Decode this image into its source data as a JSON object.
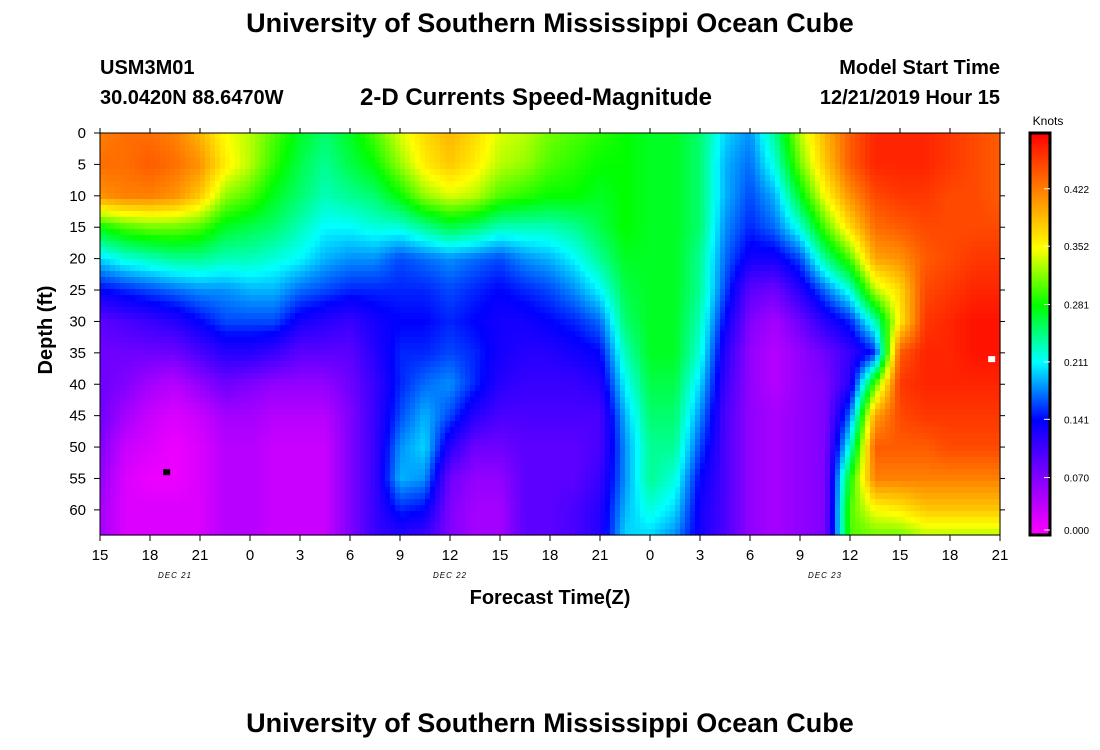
{
  "header": {
    "title": "University of Southern Mississippi Ocean Cube",
    "station_id": "USM3M01",
    "coordinates": "30.0420N 88.6470W",
    "model_start_label": "Model Start Time",
    "model_start_value": "12/21/2019 Hour 15"
  },
  "footer": {
    "title": "University of Southern Mississippi Ocean Cube"
  },
  "colorbar": {
    "unit_label": "Knots",
    "ticks": [
      "0.000",
      "0.070",
      "0.141",
      "0.211",
      "0.281",
      "0.352",
      "0.422"
    ]
  },
  "chart_data": {
    "type": "heatmap",
    "title": "2-D Currents Speed-Magnitude",
    "xlabel": "Forecast Time(Z)",
    "ylabel": "Depth (ft)",
    "units": "Knots",
    "value_range": [
      0.0,
      0.49
    ],
    "x_range_hours": [
      0,
      54
    ],
    "y_range_ft": [
      0,
      64
    ],
    "x_tick_labels": [
      "15",
      "18",
      "21",
      "0",
      "3",
      "6",
      "9",
      "12",
      "15",
      "18",
      "21",
      "0",
      "3",
      "6",
      "9",
      "12",
      "15",
      "18",
      "21"
    ],
    "y_tick_labels": [
      "0",
      "5",
      "10",
      "15",
      "20",
      "25",
      "30",
      "35",
      "40",
      "45",
      "50",
      "55",
      "60"
    ],
    "y_ticks": [
      0,
      5,
      10,
      15,
      20,
      25,
      30,
      35,
      40,
      45,
      50,
      55,
      60
    ],
    "date_labels": [
      {
        "text": "DEC 21",
        "hour": 4.5
      },
      {
        "text": "DEC 22",
        "hour": 21
      },
      {
        "text": "DEC 23",
        "hour": 43.5
      }
    ],
    "markers": [
      {
        "hour": 4,
        "depth_ft": 54,
        "color": "#000000"
      },
      {
        "hour": 53.5,
        "depth_ft": 36,
        "color": "#ffffff"
      }
    ],
    "x_hours": [
      0,
      1.5,
      3,
      4.5,
      6,
      7.5,
      9,
      10.5,
      12,
      13.5,
      15,
      16.5,
      18,
      19.5,
      21,
      22.5,
      24,
      25.5,
      27,
      28.5,
      30,
      31.5,
      33,
      34.5,
      36,
      37.5,
      39,
      40.5,
      42,
      43.5,
      45,
      46.5,
      48,
      49.5,
      51,
      52.5,
      54
    ],
    "depth_ft": [
      0,
      5,
      10,
      15,
      20,
      25,
      30,
      35,
      40,
      45,
      50,
      55,
      60,
      64
    ],
    "speed_knots": [
      [
        0.42,
        0.43,
        0.41,
        0.28,
        0.2,
        0.14,
        0.09,
        0.08,
        0.08,
        0.08,
        0.07,
        0.06,
        0.05,
        0.05
      ],
      [
        0.43,
        0.43,
        0.42,
        0.3,
        0.22,
        0.15,
        0.1,
        0.08,
        0.07,
        0.05,
        0.03,
        0.02,
        0.02,
        0.02
      ],
      [
        0.43,
        0.44,
        0.42,
        0.31,
        0.23,
        0.16,
        0.11,
        0.08,
        0.05,
        0.03,
        0.02,
        0.01,
        0.02,
        0.02
      ],
      [
        0.42,
        0.43,
        0.41,
        0.31,
        0.24,
        0.17,
        0.12,
        0.08,
        0.04,
        0.02,
        0.01,
        0.01,
        0.02,
        0.02
      ],
      [
        0.39,
        0.41,
        0.38,
        0.3,
        0.24,
        0.18,
        0.14,
        0.1,
        0.06,
        0.03,
        0.02,
        0.02,
        0.02,
        0.02
      ],
      [
        0.35,
        0.36,
        0.32,
        0.27,
        0.23,
        0.18,
        0.16,
        0.12,
        0.08,
        0.05,
        0.04,
        0.04,
        0.04,
        0.04
      ],
      [
        0.33,
        0.33,
        0.3,
        0.26,
        0.23,
        0.19,
        0.16,
        0.12,
        0.07,
        0.05,
        0.04,
        0.04,
        0.04,
        0.04
      ],
      [
        0.3,
        0.29,
        0.27,
        0.25,
        0.22,
        0.19,
        0.16,
        0.11,
        0.06,
        0.04,
        0.03,
        0.03,
        0.03,
        0.03
      ],
      [
        0.27,
        0.26,
        0.25,
        0.23,
        0.21,
        0.17,
        0.13,
        0.09,
        0.06,
        0.04,
        0.03,
        0.03,
        0.03,
        0.03
      ],
      [
        0.25,
        0.24,
        0.23,
        0.21,
        0.19,
        0.16,
        0.12,
        0.09,
        0.06,
        0.04,
        0.03,
        0.03,
        0.03,
        0.03
      ],
      [
        0.27,
        0.26,
        0.24,
        0.21,
        0.18,
        0.15,
        0.11,
        0.09,
        0.08,
        0.07,
        0.07,
        0.07,
        0.07,
        0.07
      ],
      [
        0.3,
        0.28,
        0.25,
        0.22,
        0.18,
        0.15,
        0.13,
        0.12,
        0.11,
        0.11,
        0.11,
        0.11,
        0.11,
        0.11
      ],
      [
        0.34,
        0.32,
        0.28,
        0.22,
        0.16,
        0.15,
        0.14,
        0.15,
        0.15,
        0.16,
        0.18,
        0.19,
        0.15,
        0.12
      ],
      [
        0.37,
        0.36,
        0.32,
        0.24,
        0.17,
        0.15,
        0.14,
        0.15,
        0.17,
        0.19,
        0.2,
        0.18,
        0.14,
        0.11
      ],
      [
        0.39,
        0.38,
        0.34,
        0.26,
        0.18,
        0.16,
        0.15,
        0.16,
        0.18,
        0.16,
        0.12,
        0.08,
        0.07,
        0.07
      ],
      [
        0.37,
        0.36,
        0.33,
        0.25,
        0.17,
        0.15,
        0.14,
        0.15,
        0.15,
        0.12,
        0.08,
        0.06,
        0.05,
        0.05
      ],
      [
        0.34,
        0.33,
        0.3,
        0.23,
        0.16,
        0.14,
        0.13,
        0.13,
        0.12,
        0.1,
        0.08,
        0.06,
        0.05,
        0.05
      ],
      [
        0.33,
        0.32,
        0.29,
        0.23,
        0.18,
        0.15,
        0.13,
        0.12,
        0.11,
        0.1,
        0.09,
        0.09,
        0.09,
        0.09
      ],
      [
        0.31,
        0.3,
        0.28,
        0.23,
        0.19,
        0.16,
        0.14,
        0.12,
        0.11,
        0.1,
        0.09,
        0.09,
        0.09,
        0.09
      ],
      [
        0.3,
        0.29,
        0.28,
        0.24,
        0.21,
        0.18,
        0.15,
        0.13,
        0.11,
        0.1,
        0.09,
        0.09,
        0.1,
        0.1
      ],
      [
        0.29,
        0.28,
        0.27,
        0.26,
        0.24,
        0.21,
        0.17,
        0.14,
        0.12,
        0.1,
        0.1,
        0.11,
        0.12,
        0.12
      ],
      [
        0.28,
        0.28,
        0.28,
        0.28,
        0.27,
        0.26,
        0.25,
        0.23,
        0.21,
        0.19,
        0.18,
        0.18,
        0.19,
        0.2
      ],
      [
        0.27,
        0.27,
        0.27,
        0.27,
        0.27,
        0.27,
        0.27,
        0.27,
        0.26,
        0.25,
        0.24,
        0.24,
        0.22,
        0.2
      ],
      [
        0.27,
        0.27,
        0.27,
        0.27,
        0.27,
        0.27,
        0.27,
        0.27,
        0.26,
        0.25,
        0.24,
        0.22,
        0.2,
        0.18
      ],
      [
        0.25,
        0.25,
        0.25,
        0.25,
        0.24,
        0.24,
        0.23,
        0.22,
        0.2,
        0.18,
        0.16,
        0.14,
        0.13,
        0.13
      ],
      [
        0.2,
        0.19,
        0.19,
        0.18,
        0.17,
        0.16,
        0.14,
        0.12,
        0.11,
        0.1,
        0.1,
        0.1,
        0.1,
        0.1
      ],
      [
        0.18,
        0.17,
        0.16,
        0.15,
        0.13,
        0.09,
        0.07,
        0.06,
        0.06,
        0.06,
        0.06,
        0.06,
        0.06,
        0.06
      ],
      [
        0.24,
        0.22,
        0.19,
        0.17,
        0.13,
        0.08,
        0.05,
        0.04,
        0.04,
        0.05,
        0.05,
        0.05,
        0.05,
        0.05
      ],
      [
        0.33,
        0.31,
        0.27,
        0.22,
        0.16,
        0.12,
        0.08,
        0.06,
        0.06,
        0.06,
        0.06,
        0.06,
        0.06,
        0.06
      ],
      [
        0.39,
        0.38,
        0.35,
        0.3,
        0.24,
        0.17,
        0.12,
        0.08,
        0.07,
        0.07,
        0.07,
        0.07,
        0.07,
        0.07
      ],
      [
        0.44,
        0.44,
        0.41,
        0.37,
        0.3,
        0.22,
        0.15,
        0.11,
        0.12,
        0.17,
        0.22,
        0.28,
        0.3,
        0.3
      ],
      [
        0.47,
        0.47,
        0.45,
        0.43,
        0.4,
        0.33,
        0.23,
        0.15,
        0.3,
        0.4,
        0.44,
        0.42,
        0.35,
        0.31
      ],
      [
        0.47,
        0.47,
        0.46,
        0.44,
        0.41,
        0.37,
        0.36,
        0.44,
        0.46,
        0.45,
        0.44,
        0.42,
        0.36,
        0.31
      ],
      [
        0.47,
        0.47,
        0.46,
        0.45,
        0.44,
        0.45,
        0.46,
        0.47,
        0.47,
        0.46,
        0.44,
        0.42,
        0.38,
        0.33
      ],
      [
        0.46,
        0.46,
        0.45,
        0.45,
        0.45,
        0.46,
        0.47,
        0.47,
        0.47,
        0.46,
        0.45,
        0.42,
        0.38,
        0.33
      ],
      [
        0.45,
        0.45,
        0.45,
        0.45,
        0.46,
        0.47,
        0.48,
        0.48,
        0.47,
        0.46,
        0.45,
        0.42,
        0.38,
        0.33
      ],
      [
        0.44,
        0.44,
        0.44,
        0.45,
        0.46,
        0.47,
        0.48,
        0.48,
        0.47,
        0.46,
        0.45,
        0.42,
        0.38,
        0.33
      ]
    ]
  }
}
